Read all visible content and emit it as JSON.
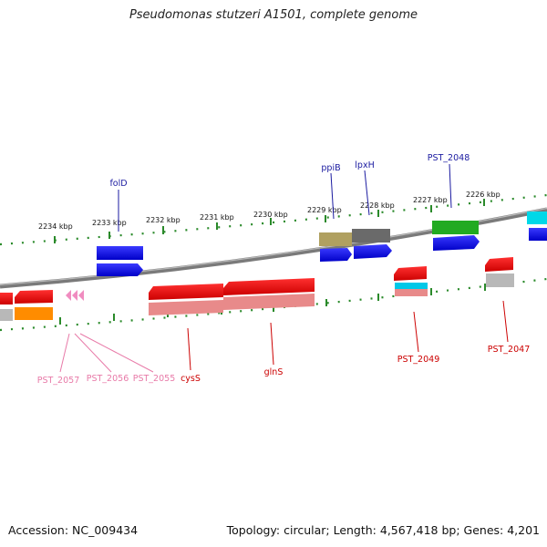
{
  "title": "Pseudomonas stutzeri A1501, complete genome",
  "footer": {
    "accession": "Accession: NC_009434",
    "summary": "Topology: circular; Length: 4,567,418 bp; Genes: 4,201"
  },
  "scale_ticks": [
    "2234 kbp",
    "2233 kbp",
    "2232 kbp",
    "2231 kbp",
    "2230 kbp",
    "2229 kbp",
    "2228 kbp",
    "2227 kbp",
    "2226 kbp"
  ],
  "gene_labels": {
    "folD": "folD",
    "ppiB": "ppiB",
    "lpxH": "lpxH",
    "PST_2048": "PST_2048",
    "PST_2057": "PST_2057",
    "PST_2056": "PST_2056",
    "PST_2055": "PST_2055",
    "cysS": "cysS",
    "glnS": "glnS",
    "PST_2049": "PST_2049",
    "PST_2047": "PST_2047"
  },
  "colors": {
    "backbone": "#8a8a8a",
    "tick": "#2a8a2a",
    "forward_label": "#1a1aa0",
    "reverse_label": "#cc0000",
    "pseudo_label": "#e87aa8"
  }
}
